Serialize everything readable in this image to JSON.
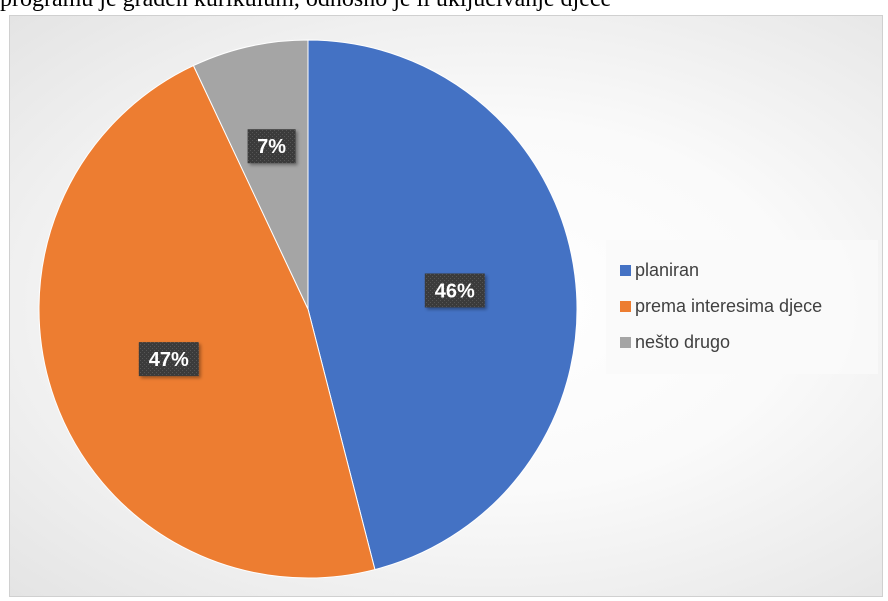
{
  "header_text": "programu je građen kurikulum, odnosno je li uključivanje djece",
  "chart_data": {
    "type": "pie",
    "title": "",
    "slices": [
      {
        "label": "planiran",
        "value": 46,
        "color": "#4472C4",
        "display": "46%"
      },
      {
        "label": "prema interesima djece",
        "value": 47,
        "color": "#ED7D31",
        "display": "47%"
      },
      {
        "label": "nešto drugo",
        "value": 7,
        "color": "#A5A5A5",
        "display": "7%"
      }
    ],
    "start": "12 o'clock",
    "direction": "clockwise",
    "legend_position": "right",
    "data_label_style": "dark textured box, white bold text"
  }
}
